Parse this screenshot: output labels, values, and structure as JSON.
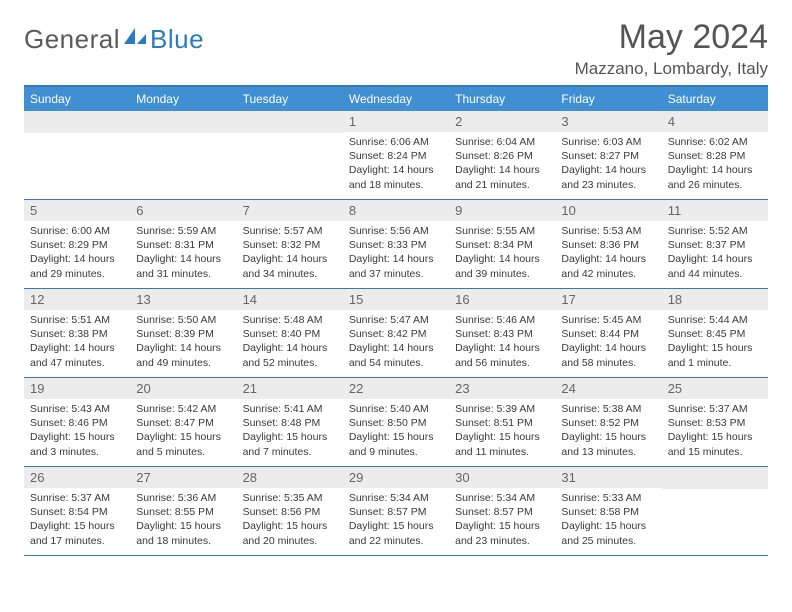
{
  "logo": {
    "text_left": "General",
    "text_right": "Blue",
    "color_gray": "#6a6a6a",
    "color_blue": "#2b7bbf"
  },
  "title": "May 2024",
  "location": "Mazzano, Lombardy, Italy",
  "colors": {
    "header_bg": "#3f8fd2",
    "border": "#347ab7",
    "datebg": "#ececec"
  },
  "day_names": [
    "Sunday",
    "Monday",
    "Tuesday",
    "Wednesday",
    "Thursday",
    "Friday",
    "Saturday"
  ],
  "weeks": [
    [
      {
        "n": "",
        "sr": "",
        "ss": "",
        "dl": ""
      },
      {
        "n": "",
        "sr": "",
        "ss": "",
        "dl": ""
      },
      {
        "n": "",
        "sr": "",
        "ss": "",
        "dl": ""
      },
      {
        "n": "1",
        "sr": "6:06 AM",
        "ss": "8:24 PM",
        "dl": "14 hours and 18 minutes."
      },
      {
        "n": "2",
        "sr": "6:04 AM",
        "ss": "8:26 PM",
        "dl": "14 hours and 21 minutes."
      },
      {
        "n": "3",
        "sr": "6:03 AM",
        "ss": "8:27 PM",
        "dl": "14 hours and 23 minutes."
      },
      {
        "n": "4",
        "sr": "6:02 AM",
        "ss": "8:28 PM",
        "dl": "14 hours and 26 minutes."
      }
    ],
    [
      {
        "n": "5",
        "sr": "6:00 AM",
        "ss": "8:29 PM",
        "dl": "14 hours and 29 minutes."
      },
      {
        "n": "6",
        "sr": "5:59 AM",
        "ss": "8:31 PM",
        "dl": "14 hours and 31 minutes."
      },
      {
        "n": "7",
        "sr": "5:57 AM",
        "ss": "8:32 PM",
        "dl": "14 hours and 34 minutes."
      },
      {
        "n": "8",
        "sr": "5:56 AM",
        "ss": "8:33 PM",
        "dl": "14 hours and 37 minutes."
      },
      {
        "n": "9",
        "sr": "5:55 AM",
        "ss": "8:34 PM",
        "dl": "14 hours and 39 minutes."
      },
      {
        "n": "10",
        "sr": "5:53 AM",
        "ss": "8:36 PM",
        "dl": "14 hours and 42 minutes."
      },
      {
        "n": "11",
        "sr": "5:52 AM",
        "ss": "8:37 PM",
        "dl": "14 hours and 44 minutes."
      }
    ],
    [
      {
        "n": "12",
        "sr": "5:51 AM",
        "ss": "8:38 PM",
        "dl": "14 hours and 47 minutes."
      },
      {
        "n": "13",
        "sr": "5:50 AM",
        "ss": "8:39 PM",
        "dl": "14 hours and 49 minutes."
      },
      {
        "n": "14",
        "sr": "5:48 AM",
        "ss": "8:40 PM",
        "dl": "14 hours and 52 minutes."
      },
      {
        "n": "15",
        "sr": "5:47 AM",
        "ss": "8:42 PM",
        "dl": "14 hours and 54 minutes."
      },
      {
        "n": "16",
        "sr": "5:46 AM",
        "ss": "8:43 PM",
        "dl": "14 hours and 56 minutes."
      },
      {
        "n": "17",
        "sr": "5:45 AM",
        "ss": "8:44 PM",
        "dl": "14 hours and 58 minutes."
      },
      {
        "n": "18",
        "sr": "5:44 AM",
        "ss": "8:45 PM",
        "dl": "15 hours and 1 minute."
      }
    ],
    [
      {
        "n": "19",
        "sr": "5:43 AM",
        "ss": "8:46 PM",
        "dl": "15 hours and 3 minutes."
      },
      {
        "n": "20",
        "sr": "5:42 AM",
        "ss": "8:47 PM",
        "dl": "15 hours and 5 minutes."
      },
      {
        "n": "21",
        "sr": "5:41 AM",
        "ss": "8:48 PM",
        "dl": "15 hours and 7 minutes."
      },
      {
        "n": "22",
        "sr": "5:40 AM",
        "ss": "8:50 PM",
        "dl": "15 hours and 9 minutes."
      },
      {
        "n": "23",
        "sr": "5:39 AM",
        "ss": "8:51 PM",
        "dl": "15 hours and 11 minutes."
      },
      {
        "n": "24",
        "sr": "5:38 AM",
        "ss": "8:52 PM",
        "dl": "15 hours and 13 minutes."
      },
      {
        "n": "25",
        "sr": "5:37 AM",
        "ss": "8:53 PM",
        "dl": "15 hours and 15 minutes."
      }
    ],
    [
      {
        "n": "26",
        "sr": "5:37 AM",
        "ss": "8:54 PM",
        "dl": "15 hours and 17 minutes."
      },
      {
        "n": "27",
        "sr": "5:36 AM",
        "ss": "8:55 PM",
        "dl": "15 hours and 18 minutes."
      },
      {
        "n": "28",
        "sr": "5:35 AM",
        "ss": "8:56 PM",
        "dl": "15 hours and 20 minutes."
      },
      {
        "n": "29",
        "sr": "5:34 AM",
        "ss": "8:57 PM",
        "dl": "15 hours and 22 minutes."
      },
      {
        "n": "30",
        "sr": "5:34 AM",
        "ss": "8:57 PM",
        "dl": "15 hours and 23 minutes."
      },
      {
        "n": "31",
        "sr": "5:33 AM",
        "ss": "8:58 PM",
        "dl": "15 hours and 25 minutes."
      },
      {
        "n": "",
        "sr": "",
        "ss": "",
        "dl": ""
      }
    ]
  ],
  "labels": {
    "sunrise": "Sunrise:",
    "sunset": "Sunset:",
    "daylight": "Daylight:"
  }
}
